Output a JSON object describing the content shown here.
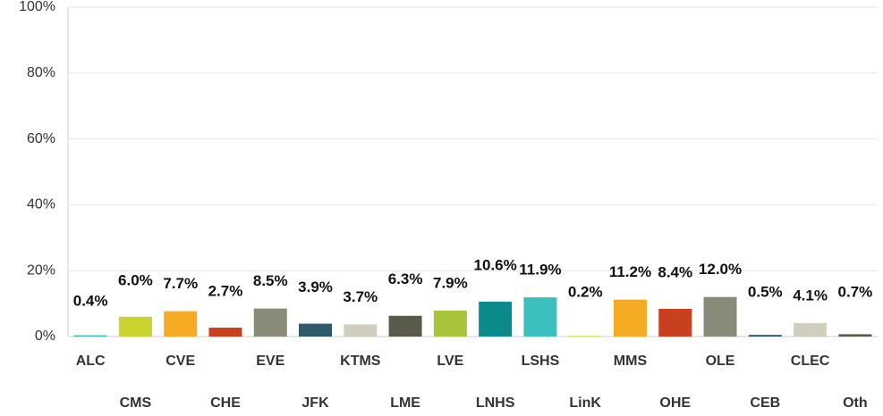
{
  "chart_data": {
    "type": "bar",
    "categories": [
      "ALC",
      "CMS",
      "CVE",
      "CHE",
      "EVE",
      "JFK",
      "KTMS",
      "LME",
      "LVE",
      "LNHS",
      "LSHS",
      "LinK",
      "MMS",
      "OHE",
      "OLE",
      "CEB",
      "CLEC",
      "Oth"
    ],
    "values": [
      0.4,
      6.0,
      7.7,
      2.7,
      8.5,
      3.9,
      3.7,
      6.3,
      7.9,
      10.6,
      11.9,
      0.2,
      11.2,
      8.4,
      12.0,
      0.5,
      4.1,
      0.7
    ],
    "value_labels": [
      "0.4%",
      "6.0%",
      "7.7%",
      "2.7%",
      "8.5%",
      "3.9%",
      "3.7%",
      "6.3%",
      "7.9%",
      "10.6%",
      "11.9%",
      "0.2%",
      "11.2%",
      "8.4%",
      "12.0%",
      "0.5%",
      "4.1%",
      "0.7%"
    ],
    "colors": [
      "#3bbfbf",
      "#c9d42e",
      "#f5ab23",
      "#c9401e",
      "#8a8a78",
      "#2e5a6b",
      "#d0cfbf",
      "#5a5a4a",
      "#a8c43a",
      "#0a8a8a",
      "#3bbfbf",
      "#c9d42e",
      "#f5ab23",
      "#c9401e",
      "#8a8a78",
      "#2e5a6b",
      "#d0cfbf",
      "#5a5a4a"
    ],
    "ylim": [
      0,
      100
    ],
    "yticks": [
      {
        "value": 0,
        "label": "0%"
      },
      {
        "value": 20,
        "label": "20%"
      },
      {
        "value": 40,
        "label": "40%"
      },
      {
        "value": 60,
        "label": "60%"
      },
      {
        "value": 80,
        "label": "80%"
      },
      {
        "value": 100,
        "label": "100%"
      }
    ],
    "grid": true
  }
}
